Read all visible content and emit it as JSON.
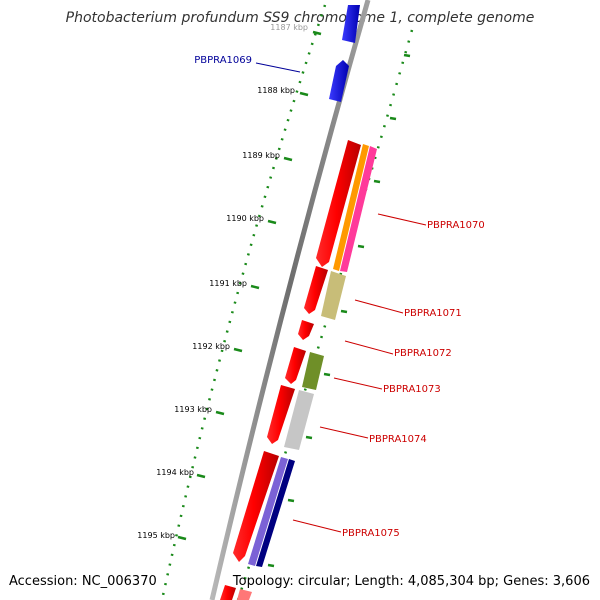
{
  "title": "Photobacterium profundum SS9 chromosome 1, complete genome",
  "footer": {
    "accession": "Accession: NC_006370",
    "topology": "Topology: circular; Length: 4,085,304 bp; Genes: 3,606"
  },
  "colors": {
    "backbone": "#808080",
    "ruler": "#1a8a1a",
    "gene_red": "#ff0000",
    "gene_blue": "#0000ff",
    "label_red": "#cc0000",
    "label_blue": "#000099"
  },
  "scale_ticks": [
    {
      "label": "1187 kbp"
    },
    {
      "label": "1188 kbp"
    },
    {
      "label": "1189 kbp"
    },
    {
      "label": "1190 kbp"
    },
    {
      "label": "1191 kbp"
    },
    {
      "label": "1192 kbp"
    },
    {
      "label": "1193 kbp"
    },
    {
      "label": "1194 kbp"
    },
    {
      "label": "1195 kbp"
    }
  ],
  "gene_labels": [
    {
      "name": "PBPRA1069",
      "color": "#000099"
    },
    {
      "name": "PBPRA1070",
      "color": "#cc0000"
    },
    {
      "name": "PBPRA1071",
      "color": "#cc0000"
    },
    {
      "name": "PBPRA1072",
      "color": "#cc0000"
    },
    {
      "name": "PBPRA1073",
      "color": "#cc0000"
    },
    {
      "name": "PBPRA1074",
      "color": "#cc0000"
    },
    {
      "name": "PBPRA1075",
      "color": "#cc0000"
    }
  ]
}
